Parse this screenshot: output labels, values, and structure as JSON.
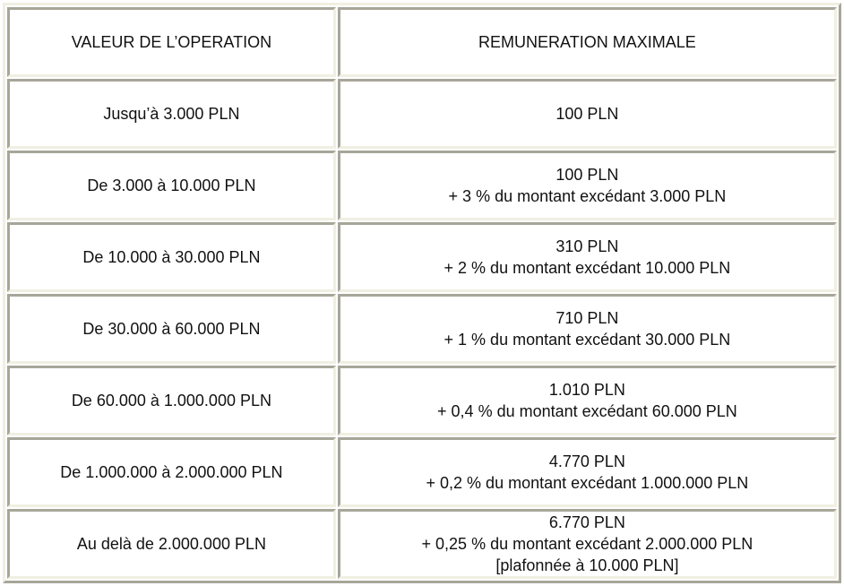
{
  "table": {
    "colors": {
      "border_light": "#f0efe2",
      "border_dark": "#a7a699",
      "cell_background": "#ffffff",
      "text": "#111111"
    },
    "columns": {
      "operation": "VALEUR DE L’OPERATION",
      "remuneration": "REMUNERATION MAXIMALE"
    },
    "rows": [
      {
        "operation": "Jusqu’à 3.000 PLN",
        "remuneration": [
          "100 PLN"
        ]
      },
      {
        "operation": "De 3.000 à 10.000 PLN",
        "remuneration": [
          "100 PLN",
          "+ 3 % du montant excédant 3.000 PLN"
        ]
      },
      {
        "operation": "De 10.000 à 30.000 PLN",
        "remuneration": [
          "310 PLN",
          "+ 2 % du montant excédant 10.000 PLN"
        ]
      },
      {
        "operation": "De 30.000 à 60.000 PLN",
        "remuneration": [
          "710 PLN",
          "+ 1 % du montant excédant 30.000 PLN"
        ]
      },
      {
        "operation": "De 60.000 à 1.000.000 PLN",
        "remuneration": [
          "1.010 PLN",
          "+ 0,4 % du montant excédant 60.000 PLN"
        ]
      },
      {
        "operation": "De 1.000.000 à 2.000.000 PLN",
        "remuneration": [
          "4.770 PLN",
          "+ 0,2 % du montant excédant 1.000.000 PLN"
        ]
      },
      {
        "operation": "Au delà de 2.000.000 PLN",
        "remuneration": [
          "6.770 PLN",
          "+ 0,25 % du montant excédant 2.000.000 PLN",
          "[plafonnée à 10.000 PLN]"
        ]
      }
    ]
  }
}
